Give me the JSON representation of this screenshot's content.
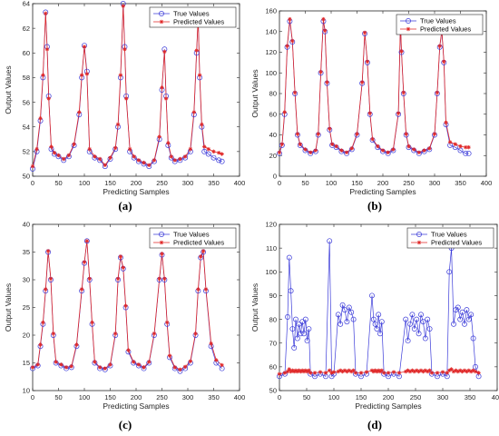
{
  "chart_data": [
    {
      "panel": "(a)",
      "type": "line",
      "caption": "(a)",
      "xlabel": "Predicting Samples",
      "ylabel": "Output Values",
      "xlim": [
        0,
        400
      ],
      "ylim": [
        50,
        64
      ],
      "xticks": [
        "0",
        "50",
        "100",
        "150",
        "200",
        "250",
        "300",
        "350",
        "400"
      ],
      "yticks": [
        "50",
        "52",
        "54",
        "56",
        "58",
        "60",
        "62",
        "64"
      ],
      "legend_position": "top-right",
      "series": [
        {
          "name": "True Values",
          "color": "#3b3bd9",
          "marker": "circle",
          "x": [
            0,
            8,
            15,
            20,
            25,
            28,
            31,
            36,
            42,
            50,
            60,
            70,
            80,
            90,
            95,
            100,
            105,
            110,
            120,
            130,
            140,
            150,
            160,
            165,
            170,
            175,
            178,
            181,
            188,
            196,
            205,
            215,
            225,
            235,
            245,
            250,
            255,
            258,
            262,
            268,
            275,
            285,
            295,
            305,
            312,
            317,
            320,
            323,
            327,
            332,
            340,
            350,
            360,
            366
          ],
          "y": [
            50.6,
            52,
            54.5,
            58,
            63.3,
            60.5,
            56.5,
            52.2,
            51.8,
            51.6,
            51.3,
            51.6,
            52.5,
            55,
            58,
            60.6,
            58.5,
            52,
            51.5,
            51.3,
            50.8,
            51.4,
            52.2,
            54,
            58,
            64,
            60.5,
            56.5,
            52,
            51.5,
            51.2,
            51,
            50.8,
            51.2,
            53,
            57,
            60.3,
            56.5,
            52.5,
            51.5,
            51.2,
            51.3,
            51.5,
            52,
            55,
            60,
            63,
            58,
            54,
            52,
            51.8,
            51.5,
            51.3,
            51.2
          ]
        },
        {
          "name": "Predicted Values",
          "color": "#e02828",
          "marker": "star",
          "x": [
            0,
            8,
            15,
            20,
            25,
            28,
            31,
            36,
            42,
            50,
            60,
            70,
            80,
            90,
            95,
            100,
            105,
            110,
            120,
            130,
            140,
            150,
            160,
            165,
            170,
            175,
            178,
            181,
            188,
            196,
            205,
            215,
            225,
            235,
            245,
            250,
            255,
            258,
            262,
            268,
            275,
            285,
            295,
            305,
            312,
            317,
            320,
            323,
            327,
            332,
            340,
            350,
            360,
            366
          ],
          "y": [
            50.8,
            52.2,
            54.7,
            58.2,
            63.2,
            60.3,
            56.3,
            52.4,
            51.9,
            51.7,
            51.4,
            51.7,
            52.6,
            55.2,
            58.2,
            60.5,
            58.3,
            52.2,
            51.6,
            51.4,
            50.9,
            51.5,
            52.3,
            54.2,
            58.2,
            63.8,
            60.3,
            56.3,
            52.2,
            51.6,
            51.3,
            51.1,
            50.9,
            51.3,
            53.2,
            57.2,
            60.1,
            56.3,
            52.7,
            51.6,
            51.3,
            51.4,
            51.6,
            52.2,
            55.2,
            60.2,
            62.8,
            58.2,
            54.2,
            52.4,
            52.2,
            52,
            51.9,
            51.8
          ]
        }
      ]
    },
    {
      "panel": "(b)",
      "type": "line",
      "caption": "(b)",
      "xlabel": "Predicting Samples",
      "ylabel": "Output Values",
      "xlim": [
        0,
        400
      ],
      "ylim": [
        0,
        160
      ],
      "xticks": [
        "0",
        "50",
        "100",
        "150",
        "200",
        "250",
        "300",
        "350",
        "400"
      ],
      "yticks": [
        "0",
        "20",
        "40",
        "60",
        "80",
        "100",
        "120",
        "140",
        "160"
      ],
      "legend_position": "top-right",
      "series": [
        {
          "name": "True Values",
          "color": "#3b3bd9",
          "marker": "circle",
          "x": [
            0,
            5,
            10,
            15,
            20,
            25,
            30,
            35,
            40,
            50,
            60,
            70,
            75,
            80,
            85,
            88,
            92,
            97,
            102,
            110,
            120,
            130,
            140,
            150,
            160,
            165,
            170,
            175,
            180,
            190,
            200,
            210,
            220,
            230,
            234,
            236,
            240,
            245,
            250,
            260,
            270,
            280,
            290,
            300,
            305,
            310,
            314,
            318,
            322,
            330,
            340,
            350,
            360,
            366
          ],
          "y": [
            22,
            30,
            60,
            125,
            150,
            130,
            80,
            40,
            30,
            25,
            22,
            24,
            40,
            100,
            150,
            140,
            90,
            45,
            30,
            28,
            24,
            22,
            26,
            40,
            90,
            138,
            110,
            60,
            35,
            28,
            24,
            22,
            25,
            60,
            148,
            120,
            80,
            40,
            28,
            25,
            22,
            24,
            26,
            40,
            80,
            125,
            140,
            110,
            50,
            30,
            28,
            25,
            22,
            22
          ]
        },
        {
          "name": "Predicted Values",
          "color": "#e02828",
          "marker": "star",
          "x": [
            0,
            5,
            10,
            15,
            20,
            25,
            30,
            35,
            40,
            50,
            60,
            70,
            75,
            80,
            85,
            88,
            92,
            97,
            102,
            110,
            120,
            130,
            140,
            150,
            160,
            165,
            170,
            175,
            180,
            190,
            200,
            210,
            220,
            230,
            234,
            236,
            240,
            245,
            250,
            260,
            270,
            280,
            290,
            300,
            305,
            310,
            314,
            318,
            322,
            330,
            340,
            350,
            360,
            366
          ],
          "y": [
            23,
            31,
            62,
            126,
            152,
            131,
            81,
            41,
            31,
            26,
            23,
            25,
            41,
            101,
            152,
            141,
            91,
            46,
            31,
            29,
            25,
            23,
            27,
            41,
            91,
            139,
            111,
            61,
            36,
            29,
            25,
            23,
            26,
            61,
            149,
            121,
            81,
            41,
            29,
            26,
            23,
            25,
            27,
            41,
            81,
            126,
            141,
            111,
            52,
            33,
            31,
            29,
            28,
            28
          ]
        }
      ]
    },
    {
      "panel": "(c)",
      "type": "line",
      "caption": "(c)",
      "xlabel": "Predicting Samples",
      "ylabel": "Output Values",
      "xlim": [
        0,
        400
      ],
      "ylim": [
        10,
        40
      ],
      "xticks": [
        "0",
        "50",
        "100",
        "150",
        "200",
        "250",
        "300",
        "350",
        "400"
      ],
      "yticks": [
        "10",
        "15",
        "20",
        "25",
        "30",
        "35",
        "40"
      ],
      "legend_position": "top-right",
      "series": [
        {
          "name": "True Values",
          "color": "#3b3bd9",
          "marker": "circle",
          "x": [
            0,
            10,
            15,
            20,
            25,
            30,
            35,
            40,
            45,
            55,
            65,
            75,
            85,
            95,
            100,
            105,
            110,
            115,
            120,
            130,
            140,
            150,
            160,
            165,
            170,
            175,
            180,
            185,
            195,
            205,
            215,
            225,
            235,
            245,
            250,
            255,
            260,
            265,
            275,
            285,
            295,
            305,
            315,
            320,
            325,
            330,
            335,
            345,
            355,
            366
          ],
          "y": [
            14,
            14.5,
            18,
            22,
            28,
            35,
            30,
            20,
            15,
            14.5,
            14,
            14.2,
            18,
            28,
            33,
            37,
            30,
            22,
            15,
            14,
            13.8,
            14.5,
            20,
            30,
            34,
            32,
            25,
            17,
            15,
            14.5,
            14,
            15,
            20,
            30,
            34.5,
            30,
            22,
            16,
            14,
            13.5,
            14,
            15,
            20,
            28,
            34,
            35,
            28,
            18,
            15,
            14
          ]
        },
        {
          "name": "Predicted Values",
          "color": "#e02828",
          "marker": "star",
          "x": [
            0,
            10,
            15,
            20,
            25,
            30,
            35,
            40,
            45,
            55,
            65,
            75,
            85,
            95,
            100,
            105,
            110,
            115,
            120,
            130,
            140,
            150,
            160,
            165,
            170,
            175,
            180,
            185,
            195,
            205,
            215,
            225,
            235,
            245,
            250,
            255,
            260,
            265,
            275,
            285,
            295,
            305,
            315,
            320,
            325,
            330,
            335,
            345,
            355,
            366
          ],
          "y": [
            14.2,
            14.7,
            18.3,
            22.3,
            28.3,
            35.2,
            30.2,
            20.3,
            15.2,
            14.7,
            14.2,
            14.4,
            18.3,
            28.3,
            33.2,
            37,
            30.2,
            22.3,
            15.2,
            14.2,
            14,
            14.7,
            20.3,
            30.2,
            34.2,
            32.2,
            25.3,
            17.3,
            15.2,
            14.7,
            14.2,
            15.2,
            20.3,
            30.2,
            34.7,
            30.2,
            22.3,
            16.3,
            14.2,
            13.8,
            14.3,
            15.3,
            20.3,
            28.3,
            34.2,
            35.2,
            28.3,
            18.5,
            15.5,
            14.6
          ]
        }
      ]
    },
    {
      "panel": "(d)",
      "type": "line",
      "caption": "(d)",
      "xlabel": "Predicting Samples",
      "ylabel": "Output Values",
      "xlim": [
        0,
        400
      ],
      "ylim": [
        50,
        120
      ],
      "xticks": [
        "0",
        "50",
        "100",
        "150",
        "200",
        "250",
        "300",
        "350",
        "400"
      ],
      "yticks": [
        "50",
        "60",
        "70",
        "80",
        "90",
        "100",
        "110",
        "120"
      ],
      "legend_position": "top-right",
      "series": [
        {
          "name": "True Values",
          "color": "#3b3bd9",
          "marker": "circle",
          "x": [
            0,
            10,
            15,
            18,
            21,
            24,
            27,
            30,
            33,
            36,
            39,
            42,
            45,
            48,
            51,
            54,
            57,
            65,
            75,
            85,
            92,
            96,
            100,
            108,
            112,
            116,
            120,
            124,
            128,
            132,
            136,
            140,
            150,
            160,
            170,
            173,
            176,
            179,
            182,
            185,
            188,
            192,
            200,
            210,
            220,
            232,
            236,
            240,
            244,
            248,
            252,
            256,
            260,
            264,
            268,
            272,
            276,
            280,
            290,
            300,
            308,
            312,
            316,
            320,
            324,
            328,
            332,
            336,
            340,
            344,
            348,
            352,
            356,
            360,
            366
          ],
          "y": [
            56,
            57,
            81,
            106,
            92,
            76,
            68,
            80,
            72,
            78,
            74,
            79,
            74,
            80,
            71,
            76,
            57,
            56,
            57,
            56,
            113,
            56,
            57,
            82,
            78,
            86,
            84,
            79,
            85,
            83,
            80,
            57,
            56,
            57,
            90,
            80,
            78,
            76,
            82,
            74,
            79,
            57,
            56,
            57,
            56,
            80,
            71,
            78,
            82,
            76,
            80,
            74,
            82,
            79,
            72,
            80,
            76,
            57,
            56,
            57,
            56,
            100,
            110,
            78,
            84,
            85,
            80,
            83,
            78,
            84,
            80,
            82,
            72,
            60,
            56
          ]
        },
        {
          "name": "Predicted Values",
          "color": "#e02828",
          "marker": "star",
          "x": [
            0,
            10,
            15,
            18,
            21,
            24,
            27,
            30,
            33,
            36,
            39,
            42,
            45,
            48,
            51,
            54,
            57,
            65,
            75,
            85,
            92,
            96,
            100,
            108,
            112,
            116,
            120,
            124,
            128,
            132,
            136,
            140,
            150,
            160,
            170,
            173,
            176,
            179,
            182,
            185,
            188,
            192,
            200,
            210,
            220,
            232,
            236,
            240,
            244,
            248,
            252,
            256,
            260,
            264,
            268,
            272,
            276,
            280,
            290,
            300,
            308,
            312,
            316,
            320,
            324,
            328,
            332,
            336,
            340,
            344,
            348,
            352,
            356,
            360,
            366
          ],
          "y": [
            57,
            57.5,
            58,
            59,
            58,
            58.5,
            58,
            58.5,
            58,
            58.5,
            58,
            58.5,
            58,
            58.5,
            58,
            58.5,
            57.5,
            57.5,
            57.8,
            57.5,
            58.5,
            57.5,
            57.8,
            58,
            58.5,
            58,
            58.5,
            58,
            58.5,
            58,
            58.5,
            57.5,
            57.5,
            57.8,
            58.5,
            58,
            58.5,
            58,
            58.5,
            58,
            58.5,
            57.5,
            57.5,
            57.8,
            57.5,
            58,
            58.5,
            58,
            58.5,
            58,
            58.5,
            58,
            58.5,
            58,
            58.5,
            58,
            58.5,
            57.5,
            57.5,
            57.8,
            57.5,
            58.5,
            59,
            58,
            58.5,
            58,
            58.5,
            58,
            58.5,
            58,
            58.5,
            58,
            58.5,
            58,
            57.5
          ]
        }
      ]
    }
  ]
}
